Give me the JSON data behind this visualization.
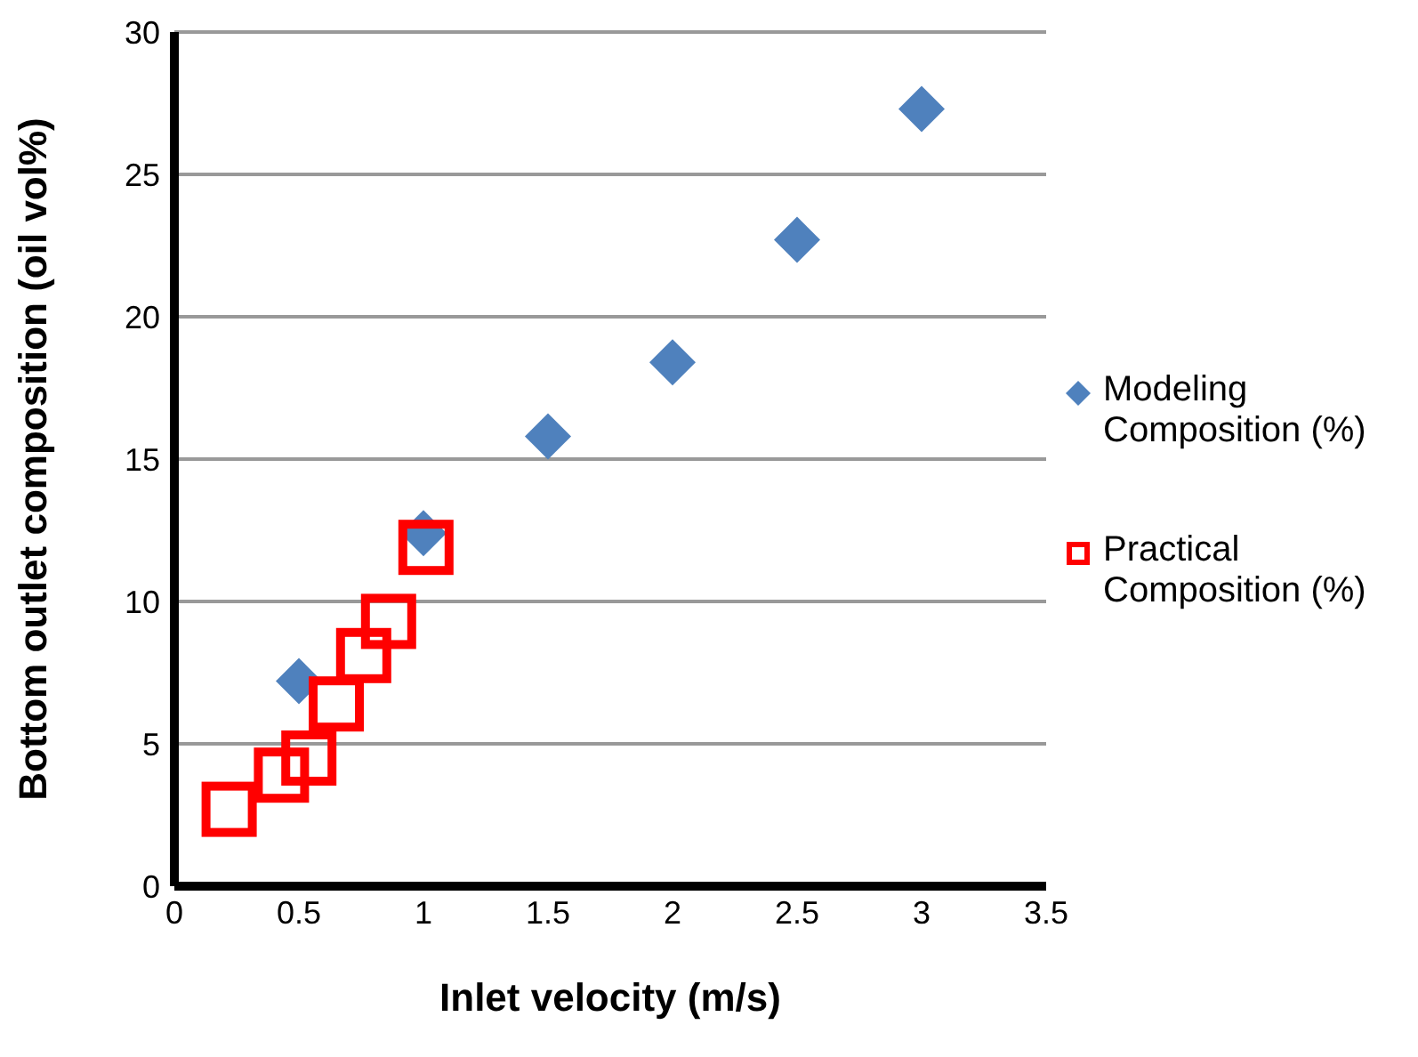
{
  "chart_data": {
    "type": "scatter",
    "xlabel": "Inlet velocity (m/s)",
    "ylabel": "Bottom outlet composition (oil vol%)",
    "xlim": [
      0,
      3.5
    ],
    "xticks": [
      0,
      0.5,
      1,
      1.5,
      2,
      2.5,
      3,
      3.5
    ],
    "ylim": [
      0,
      30
    ],
    "yticks": [
      0,
      5,
      10,
      15,
      20,
      25,
      30
    ],
    "grid": "y",
    "legend": "right",
    "series": [
      {
        "name": "Modeling Composition (%)",
        "color": "#4f81bd",
        "marker": "diamond",
        "x": [
          0.5,
          1,
          1.5,
          2,
          2.5,
          3
        ],
        "values": [
          7.2,
          12.4,
          15.8,
          18.4,
          22.7,
          27.3
        ]
      },
      {
        "name": "Practical Composition (%)",
        "color": "#ff0000",
        "marker": "square",
        "x": [
          0.22,
          0.43,
          0.54,
          0.65,
          0.76,
          0.86,
          1.01
        ],
        "values": [
          2.7,
          3.9,
          4.5,
          6.4,
          8.1,
          9.3,
          11.9
        ]
      }
    ]
  }
}
